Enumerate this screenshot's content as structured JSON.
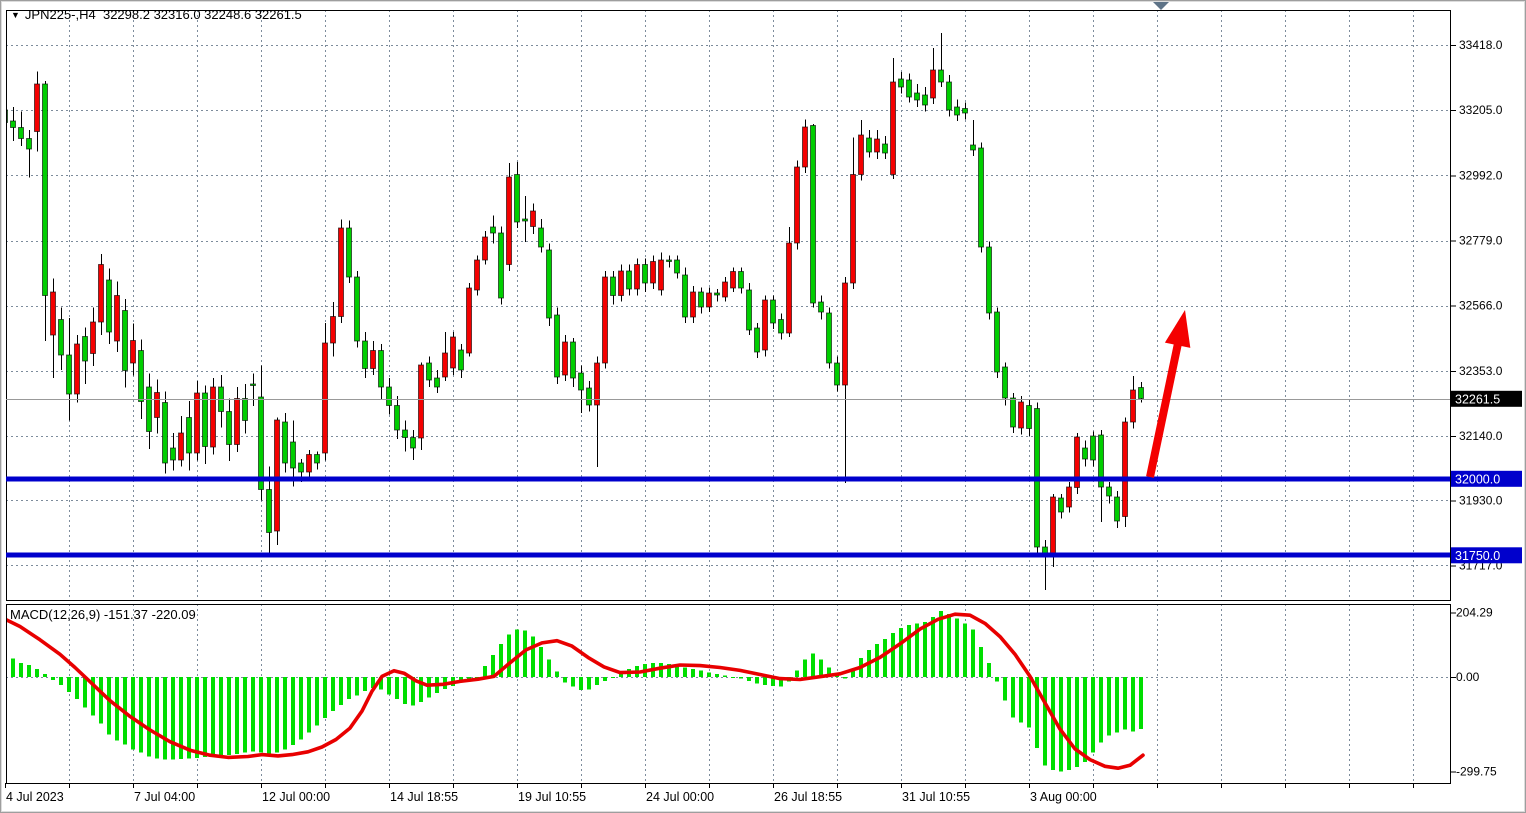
{
  "header": {
    "symbol_period": "JPN225-,H4",
    "ohlc": "32298.2 32316.0 32248.6 32261.5"
  },
  "icons": {
    "dropdown": "▼"
  },
  "macd_label": "MACD(12,26,9) -151.37 -220.09",
  "colors": {
    "candle_up": "#F40000",
    "candle_down": "#00CE00",
    "macd_bar": "#00DE00",
    "macd_signal": "#E80000",
    "level_line": "#0000CC",
    "grid": "#7D8C9C",
    "current_price_line": "#999999",
    "badge_last_bg": "#000000",
    "badge_level_bg": "#0000CC",
    "arrow": "#F40000",
    "shift_marker": "#5E7387"
  },
  "price_scale": {
    "badges": [
      {
        "text": "32261.5",
        "type": "last-price"
      },
      {
        "text": "32000.0",
        "type": "level"
      },
      {
        "text": "31750.0",
        "type": "level"
      }
    ]
  },
  "chart_data": {
    "type": "candlestick",
    "title": "JPN225-,H4",
    "symbol": "JPN225-",
    "timeframe": "H4",
    "last_quote": {
      "open": 32298.2,
      "high": 32316.0,
      "low": 32248.6,
      "close": 32261.5
    },
    "current_price": 32261.5,
    "levels": [
      32000.0,
      31750.0
    ],
    "price_ticks": [
      33418,
      33205,
      32992,
      32779,
      32566,
      32353,
      32140,
      31930,
      31717
    ],
    "time_labels": [
      "4 Jul 2023",
      "7 Jul 04:00",
      "12 Jul 00:00",
      "14 Jul 18:55",
      "19 Jul 10:55",
      "24 Jul 00:00",
      "26 Jul 18:55",
      "31 Jul 10:55",
      "3 Aug 00:00"
    ],
    "ylim": [
      31650,
      33470
    ],
    "grid": true,
    "candles": [
      [
        33205,
        33250,
        33135,
        33165
      ],
      [
        33170,
        33215,
        33105,
        33148
      ],
      [
        33148,
        33200,
        33088,
        33112
      ],
      [
        33112,
        33140,
        32985,
        33078
      ],
      [
        33135,
        33332,
        33070,
        33290
      ],
      [
        33290,
        33300,
        32450,
        32600
      ],
      [
        32470,
        32655,
        32330,
        32610
      ],
      [
        32520,
        32560,
        32355,
        32405
      ],
      [
        32405,
        32525,
        32190,
        32278
      ],
      [
        32278,
        32470,
        32250,
        32440
      ],
      [
        32465,
        32495,
        32310,
        32385
      ],
      [
        32410,
        32560,
        32368,
        32512
      ],
      [
        32512,
        32735,
        32470,
        32700
      ],
      [
        32650,
        32688,
        32440,
        32480
      ],
      [
        32450,
        32645,
        32415,
        32600
      ],
      [
        32550,
        32588,
        32298,
        32355
      ],
      [
        32378,
        32508,
        32338,
        32452
      ],
      [
        32420,
        32455,
        32196,
        32252
      ],
      [
        32300,
        32345,
        32098,
        32155
      ],
      [
        32200,
        32325,
        32148,
        32282
      ],
      [
        32250,
        32285,
        32018,
        32052
      ],
      [
        32100,
        32150,
        32028,
        32062
      ],
      [
        32062,
        32205,
        32040,
        32150
      ],
      [
        32200,
        32255,
        32028,
        32085
      ],
      [
        32085,
        32320,
        32060,
        32280
      ],
      [
        32280,
        32305,
        32048,
        32105
      ],
      [
        32105,
        32330,
        32080,
        32300
      ],
      [
        32300,
        32340,
        32168,
        32220
      ],
      [
        32220,
        32262,
        32058,
        32112
      ],
      [
        32112,
        32300,
        32088,
        32262
      ],
      [
        32262,
        32310,
        32148,
        32190
      ],
      [
        32310,
        32345,
        32238,
        32305
      ],
      [
        32268,
        32370,
        31930,
        31965
      ],
      [
        31965,
        32040,
        31757,
        31825
      ],
      [
        31830,
        32200,
        31784,
        32193
      ],
      [
        32186,
        32215,
        32020,
        32052
      ],
      [
        32120,
        32190,
        31975,
        32035
      ],
      [
        32052,
        32065,
        31990,
        32022
      ],
      [
        32022,
        32095,
        32005,
        32080
      ],
      [
        32080,
        32090,
        32030,
        32052
      ],
      [
        32085,
        32510,
        32060,
        32444
      ],
      [
        32444,
        32578,
        32400,
        32530
      ],
      [
        32530,
        32848,
        32510,
        32820
      ],
      [
        32820,
        32845,
        32640,
        32660
      ],
      [
        32660,
        32680,
        32430,
        32450
      ],
      [
        32450,
        32480,
        32330,
        32360
      ],
      [
        32360,
        32450,
        32340,
        32420
      ],
      [
        32420,
        32440,
        32260,
        32300
      ],
      [
        32300,
        32330,
        32210,
        32240
      ],
      [
        32240,
        32270,
        32130,
        32160
      ],
      [
        32160,
        32190,
        32090,
        32135
      ],
      [
        32135,
        32160,
        32062,
        32100
      ],
      [
        32133,
        32380,
        32095,
        32372
      ],
      [
        32379,
        32400,
        32300,
        32323
      ],
      [
        32330,
        32355,
        32280,
        32300
      ],
      [
        32333,
        32480,
        32320,
        32412
      ],
      [
        32362,
        32480,
        32340,
        32464
      ],
      [
        32421,
        32440,
        32330,
        32356
      ],
      [
        32412,
        32640,
        32400,
        32624
      ],
      [
        32617,
        32730,
        32600,
        32715
      ],
      [
        32715,
        32810,
        32700,
        32790
      ],
      [
        32823,
        32860,
        32770,
        32803
      ],
      [
        32803,
        32825,
        32570,
        32591
      ],
      [
        32700,
        33032,
        32680,
        32987
      ],
      [
        32995,
        33035,
        32820,
        32840
      ],
      [
        32850,
        32925,
        32774,
        32843
      ],
      [
        32825,
        32900,
        32800,
        32875
      ],
      [
        32820,
        32850,
        32740,
        32758
      ],
      [
        32748,
        32770,
        32500,
        32525
      ],
      [
        32535,
        32560,
        32310,
        32333
      ],
      [
        32339,
        32470,
        32320,
        32447
      ],
      [
        32447,
        32460,
        32300,
        32329
      ],
      [
        32346,
        32370,
        32215,
        32290
      ],
      [
        32297,
        32320,
        32220,
        32241
      ],
      [
        32241,
        32400,
        32039,
        32378
      ],
      [
        32378,
        32680,
        32360,
        32660
      ],
      [
        32660,
        32680,
        32570,
        32600
      ],
      [
        32600,
        32700,
        32580,
        32680
      ],
      [
        32680,
        32700,
        32600,
        32620
      ],
      [
        32620,
        32720,
        32600,
        32700
      ],
      [
        32700,
        32720,
        32610,
        32640
      ],
      [
        32640,
        32730,
        32620,
        32710
      ],
      [
        32617,
        32740,
        32600,
        32715
      ],
      [
        32715,
        32730,
        32690,
        32711
      ],
      [
        32715,
        32730,
        32655,
        32673
      ],
      [
        32666,
        32690,
        32510,
        32529
      ],
      [
        32529,
        32630,
        32510,
        32611
      ],
      [
        32611,
        32625,
        32540,
        32562
      ],
      [
        32562,
        32625,
        32545,
        32608
      ],
      [
        32608,
        32620,
        32580,
        32601
      ],
      [
        32595,
        32660,
        32580,
        32644
      ],
      [
        32624,
        32690,
        32610,
        32677
      ],
      [
        32677,
        32690,
        32605,
        32624
      ],
      [
        32617,
        32640,
        32470,
        32487
      ],
      [
        32493,
        32510,
        32395,
        32415
      ],
      [
        32421,
        32600,
        32400,
        32585
      ],
      [
        32585,
        32600,
        32490,
        32510
      ],
      [
        32520,
        32540,
        32455,
        32477
      ],
      [
        32477,
        32823,
        32464,
        32771
      ],
      [
        32771,
        33040,
        32750,
        33020
      ],
      [
        33020,
        33175,
        33000,
        33150
      ],
      [
        33155,
        33160,
        32560,
        32575
      ],
      [
        32578,
        32600,
        32520,
        32545
      ],
      [
        32542,
        32560,
        32360,
        32378
      ],
      [
        32378,
        32400,
        32285,
        32307
      ],
      [
        32307,
        32660,
        31986,
        32640
      ],
      [
        32640,
        33115,
        32620,
        32995
      ],
      [
        32995,
        33173,
        32975,
        33124
      ],
      [
        33114,
        33140,
        33050,
        33068
      ],
      [
        33068,
        33140,
        33045,
        33110
      ],
      [
        33095,
        33120,
        33045,
        33065
      ],
      [
        32995,
        33375,
        32980,
        33297
      ],
      [
        33307,
        33330,
        33260,
        33281
      ],
      [
        33303,
        33325,
        33230,
        33248
      ],
      [
        33261,
        33290,
        33215,
        33238
      ],
      [
        33255,
        33280,
        33200,
        33222
      ],
      [
        33245,
        33408,
        33225,
        33336
      ],
      [
        33336,
        33457,
        33280,
        33297
      ],
      [
        33297,
        33320,
        33185,
        33205
      ],
      [
        33215,
        33240,
        33170,
        33189
      ],
      [
        33210,
        33230,
        33175,
        33196
      ],
      [
        33091,
        33173,
        33055,
        33075
      ],
      [
        33081,
        33100,
        32740,
        32758
      ],
      [
        32758,
        32775,
        32520,
        32542
      ],
      [
        32545,
        32560,
        32330,
        32349
      ],
      [
        32366,
        32380,
        32240,
        32264
      ],
      [
        32264,
        32280,
        32150,
        32170
      ],
      [
        32166,
        32270,
        32145,
        32251
      ],
      [
        32240,
        32260,
        32140,
        32164
      ],
      [
        32230,
        32250,
        31760,
        31777
      ],
      [
        31777,
        31800,
        31637,
        31751
      ],
      [
        31748,
        31950,
        31712,
        31941
      ],
      [
        31937,
        31950,
        31870,
        31891
      ],
      [
        31908,
        31990,
        31890,
        31974
      ],
      [
        31971,
        32150,
        31950,
        32137
      ],
      [
        32101,
        32125,
        32040,
        32065
      ],
      [
        32140,
        32155,
        32040,
        32062
      ],
      [
        32144,
        32160,
        31859,
        31974
      ],
      [
        31974,
        31990,
        31920,
        31944
      ],
      [
        31941,
        31960,
        31840,
        31863
      ],
      [
        31876,
        32200,
        31843,
        32186
      ],
      [
        32186,
        32336,
        32165,
        32290
      ],
      [
        32298,
        32316,
        32249,
        32262
      ]
    ],
    "arrow": {
      "from": [
        1150,
        477
      ],
      "to": [
        1185,
        310
      ]
    },
    "macd": {
      "label": "MACD(12,26,9) -151.37 -220.09",
      "params": "12,26,9",
      "value": -151.37,
      "signal_value": -220.09,
      "ticks": [
        204.29,
        0.0,
        -299.75
      ],
      "histogram": [
        95,
        58,
        45,
        38,
        25,
        10,
        -10,
        -26,
        -48,
        -70,
        -96,
        -122,
        -147,
        -182,
        -202,
        -214,
        -230,
        -240,
        -252,
        -258,
        -262,
        -262,
        -260,
        -258,
        -256,
        -254,
        -252,
        -250,
        -248,
        -244,
        -240,
        -236,
        -240,
        -244,
        -240,
        -230,
        -215,
        -198,
        -176,
        -154,
        -130,
        -108,
        -88,
        -70,
        -58,
        -45,
        -35,
        -40,
        -55,
        -70,
        -85,
        -90,
        -80,
        -65,
        -50,
        -38,
        -28,
        -18,
        -10,
        -4,
        35,
        70,
        105,
        135,
        150,
        148,
        128,
        95,
        55,
        18,
        -18,
        -30,
        -42,
        -40,
        -25,
        -12,
        0,
        10,
        25,
        35,
        42,
        45,
        45,
        42,
        38,
        30,
        25,
        20,
        15,
        10,
        5,
        0,
        -5,
        -12,
        -20,
        -25,
        -28,
        -30,
        -15,
        20,
        55,
        75,
        55,
        30,
        8,
        -5,
        25,
        60,
        85,
        105,
        120,
        140,
        155,
        165,
        170,
        175,
        190,
        210,
        200,
        185,
        170,
        150,
        95,
        45,
        -15,
        -75,
        -128,
        -145,
        -160,
        -225,
        -280,
        -295,
        -300,
        -295,
        -285,
        -270,
        -240,
        -208,
        -186,
        -176,
        -166,
        -172,
        -165
      ],
      "signal": [
        [
          2,
          188
        ],
        [
          20,
          160
        ],
        [
          40,
          118
        ],
        [
          60,
          72
        ],
        [
          75,
          30
        ],
        [
          90,
          -15
        ],
        [
          110,
          -75
        ],
        [
          130,
          -125
        ],
        [
          150,
          -168
        ],
        [
          170,
          -205
        ],
        [
          190,
          -232
        ],
        [
          210,
          -248
        ],
        [
          228,
          -255
        ],
        [
          248,
          -252
        ],
        [
          262,
          -246
        ],
        [
          278,
          -250
        ],
        [
          292,
          -246
        ],
        [
          308,
          -237
        ],
        [
          322,
          -222
        ],
        [
          336,
          -198
        ],
        [
          350,
          -162
        ],
        [
          362,
          -108
        ],
        [
          372,
          -45
        ],
        [
          382,
          2
        ],
        [
          394,
          20
        ],
        [
          404,
          12
        ],
        [
          416,
          -12
        ],
        [
          427,
          -26
        ],
        [
          443,
          -23
        ],
        [
          460,
          -14
        ],
        [
          478,
          -7
        ],
        [
          494,
          2
        ],
        [
          510,
          45
        ],
        [
          526,
          86
        ],
        [
          542,
          108
        ],
        [
          557,
          115
        ],
        [
          572,
          98
        ],
        [
          588,
          62
        ],
        [
          604,
          32
        ],
        [
          620,
          14
        ],
        [
          640,
          16
        ],
        [
          660,
          28
        ],
        [
          680,
          38
        ],
        [
          700,
          36
        ],
        [
          720,
          30
        ],
        [
          740,
          21
        ],
        [
          760,
          8
        ],
        [
          780,
          -5
        ],
        [
          800,
          -8
        ],
        [
          820,
          1
        ],
        [
          840,
          10
        ],
        [
          860,
          30
        ],
        [
          880,
          62
        ],
        [
          900,
          105
        ],
        [
          920,
          152
        ],
        [
          938,
          183
        ],
        [
          955,
          199
        ],
        [
          970,
          196
        ],
        [
          985,
          170
        ],
        [
          1000,
          128
        ],
        [
          1015,
          72
        ],
        [
          1030,
          2
        ],
        [
          1045,
          -82
        ],
        [
          1060,
          -165
        ],
        [
          1075,
          -228
        ],
        [
          1090,
          -262
        ],
        [
          1105,
          -283
        ],
        [
          1118,
          -289
        ],
        [
          1130,
          -280
        ],
        [
          1143,
          -248
        ]
      ]
    }
  }
}
